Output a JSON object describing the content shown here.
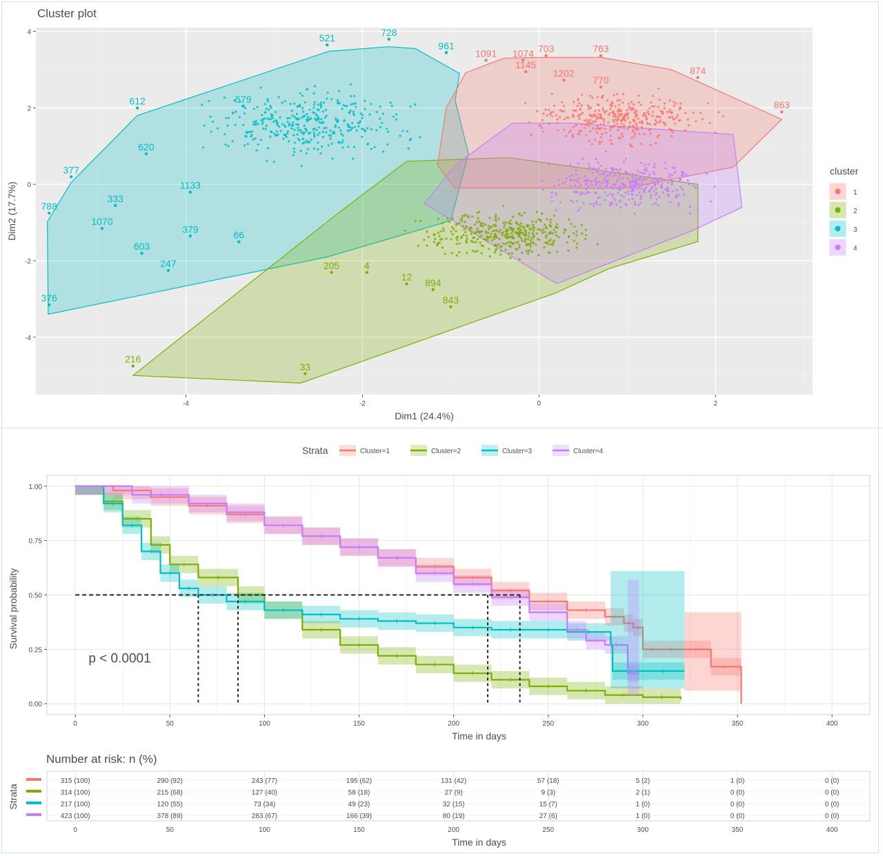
{
  "colors": {
    "c1": "#F8766D",
    "c2": "#7CAE00",
    "c3": "#00BFC4",
    "c4": "#C77CFF",
    "panel_bg": "#EBEBEB",
    "km_grid": "#E6E6E6",
    "text": "#4D4D4D"
  },
  "chart_data": [
    {
      "type": "scatter",
      "title": "Cluster plot",
      "xlabel": "Dim1 (24.4%)",
      "ylabel": "Dim2 (17.7%)",
      "xlim": [
        -5.7,
        3.1
      ],
      "ylim": [
        -5.5,
        4.1
      ],
      "x_ticks": [
        -4,
        -2,
        0,
        2
      ],
      "y_ticks": [
        4,
        2,
        0,
        -2,
        -4
      ],
      "legend": {
        "title": "cluster",
        "position": "right",
        "entries": [
          "1",
          "2",
          "3",
          "4"
        ]
      },
      "hulls": [
        {
          "name": "1",
          "points": [
            [
              -0.83,
              2.92
            ],
            [
              -0.4,
              3.3
            ],
            [
              0.08,
              3.32
            ],
            [
              0.7,
              3.32
            ],
            [
              1.5,
              3.0
            ],
            [
              2.75,
              1.7
            ],
            [
              2.2,
              0.45
            ],
            [
              1.0,
              -0.1
            ],
            [
              -0.95,
              -0.1
            ],
            [
              -1.15,
              0.5
            ],
            [
              -1.05,
              2.0
            ]
          ]
        },
        {
          "name": "2",
          "points": [
            [
              -4.6,
              -5.0
            ],
            [
              -2.7,
              -5.2
            ],
            [
              0.18,
              -2.85
            ],
            [
              0.8,
              -2.2
            ],
            [
              1.8,
              -1.5
            ],
            [
              1.8,
              0.0
            ],
            [
              -0.35,
              0.7
            ],
            [
              -1.5,
              0.6
            ],
            [
              -2.3,
              -0.8
            ]
          ]
        },
        {
          "name": "3",
          "points": [
            [
              -5.57,
              -0.98
            ],
            [
              -5.56,
              -3.4
            ],
            [
              -2.4,
              -1.9
            ],
            [
              -1.0,
              -0.95
            ],
            [
              -0.8,
              0.8
            ],
            [
              -0.95,
              2.2
            ],
            [
              -0.9,
              2.9
            ],
            [
              -1.4,
              3.55
            ],
            [
              -1.7,
              3.6
            ],
            [
              -2.38,
              3.48
            ],
            [
              -4.55,
              1.8
            ],
            [
              -5.3,
              0.05
            ]
          ]
        },
        {
          "name": "4",
          "points": [
            [
              -1.3,
              -0.5
            ],
            [
              -0.95,
              0.5
            ],
            [
              -0.3,
              1.6
            ],
            [
              0.4,
              1.6
            ],
            [
              2.2,
              1.3
            ],
            [
              2.3,
              -0.6
            ],
            [
              1.75,
              -1.2
            ],
            [
              0.2,
              -2.6
            ]
          ]
        }
      ],
      "labels": [
        {
          "cluster": "1",
          "text": "1091",
          "x": -0.6,
          "y": 3.3
        },
        {
          "cluster": "1",
          "text": "1074",
          "x": -0.18,
          "y": 3.3
        },
        {
          "cluster": "1",
          "text": "703",
          "x": 0.08,
          "y": 3.42
        },
        {
          "cluster": "1",
          "text": "763",
          "x": 0.7,
          "y": 3.42
        },
        {
          "cluster": "1",
          "text": "1202",
          "x": 0.28,
          "y": 2.78
        },
        {
          "cluster": "1",
          "text": "770",
          "x": 0.7,
          "y": 2.6
        },
        {
          "cluster": "1",
          "text": "863",
          "x": 2.75,
          "y": 1.95
        },
        {
          "cluster": "1",
          "text": "874",
          "x": 1.8,
          "y": 2.85
        },
        {
          "cluster": "1",
          "text": "1145",
          "x": -0.15,
          "y": 3.0
        },
        {
          "cluster": "2",
          "text": "216",
          "x": -4.6,
          "y": -4.7
        },
        {
          "cluster": "2",
          "text": "33",
          "x": -2.65,
          "y": -4.9
        },
        {
          "cluster": "2",
          "text": "843",
          "x": -1.0,
          "y": -3.15
        },
        {
          "cluster": "2",
          "text": "894",
          "x": -1.2,
          "y": -2.7
        },
        {
          "cluster": "2",
          "text": "205",
          "x": -2.35,
          "y": -2.25
        },
        {
          "cluster": "2",
          "text": "12",
          "x": -1.5,
          "y": -2.55
        },
        {
          "cluster": "2",
          "text": "4",
          "x": -1.95,
          "y": -2.25
        },
        {
          "cluster": "3",
          "text": "728",
          "x": -1.7,
          "y": 3.85
        },
        {
          "cluster": "3",
          "text": "521",
          "x": -2.4,
          "y": 3.7
        },
        {
          "cluster": "3",
          "text": "961",
          "x": -1.05,
          "y": 3.5
        },
        {
          "cluster": "3",
          "text": "612",
          "x": -4.55,
          "y": 2.05
        },
        {
          "cluster": "3",
          "text": "377",
          "x": -5.3,
          "y": 0.25
        },
        {
          "cluster": "3",
          "text": "788",
          "x": -5.55,
          "y": -0.7
        },
        {
          "cluster": "3",
          "text": "376",
          "x": -5.55,
          "y": -3.1
        },
        {
          "cluster": "3",
          "text": "1070",
          "x": -4.95,
          "y": -1.1
        },
        {
          "cluster": "3",
          "text": "603",
          "x": -4.5,
          "y": -1.75
        },
        {
          "cluster": "3",
          "text": "247",
          "x": -4.2,
          "y": -2.2
        },
        {
          "cluster": "3",
          "text": "379",
          "x": -3.95,
          "y": -1.3
        },
        {
          "cluster": "3",
          "text": "66",
          "x": -3.4,
          "y": -1.45
        },
        {
          "cluster": "3",
          "text": "1133",
          "x": -3.95,
          "y": -0.15
        },
        {
          "cluster": "3",
          "text": "333",
          "x": -4.8,
          "y": -0.5
        },
        {
          "cluster": "3",
          "text": "620",
          "x": -4.45,
          "y": 0.85
        },
        {
          "cluster": "3",
          "text": "579",
          "x": -3.35,
          "y": 2.1
        }
      ]
    },
    {
      "type": "line",
      "title": "",
      "xlabel": "Time in days",
      "ylabel": "Survival probability",
      "xlim": [
        -15,
        420
      ],
      "ylim": [
        -0.05,
        1.05
      ],
      "x_ticks": [
        0,
        50,
        100,
        150,
        200,
        250,
        300,
        350,
        400
      ],
      "y_ticks": [
        "1.00",
        "0.75",
        "0.50",
        "0.25",
        "0.00"
      ],
      "legend": {
        "title": "Strata",
        "position": "top"
      },
      "annotation": "p < 0.0001",
      "median_line": 0.5,
      "medians": [
        65,
        86,
        218,
        235
      ],
      "series": [
        {
          "name": "Cluster=1",
          "x": [
            0,
            20,
            40,
            60,
            80,
            100,
            120,
            140,
            160,
            180,
            200,
            220,
            240,
            260,
            280,
            290,
            295,
            300,
            310,
            320,
            336,
            350,
            352
          ],
          "values": [
            1.0,
            0.98,
            0.95,
            0.91,
            0.87,
            0.82,
            0.77,
            0.72,
            0.67,
            0.63,
            0.58,
            0.52,
            0.47,
            0.43,
            0.4,
            0.37,
            0.35,
            0.25,
            0.25,
            0.25,
            0.17,
            0.17,
            0.0
          ]
        },
        {
          "name": "Cluster=2",
          "x": [
            0,
            15,
            25,
            40,
            50,
            65,
            86,
            100,
            120,
            140,
            160,
            180,
            200,
            220,
            240,
            260,
            280,
            300,
            320
          ],
          "values": [
            1.0,
            0.93,
            0.85,
            0.73,
            0.64,
            0.58,
            0.5,
            0.43,
            0.34,
            0.27,
            0.22,
            0.18,
            0.14,
            0.11,
            0.08,
            0.06,
            0.04,
            0.03,
            0.02
          ]
        },
        {
          "name": "Cluster=3",
          "x": [
            0,
            15,
            25,
            35,
            45,
            55,
            65,
            80,
            100,
            120,
            140,
            160,
            180,
            200,
            220,
            240,
            260,
            283,
            284,
            300,
            322
          ],
          "values": [
            1.0,
            0.92,
            0.82,
            0.7,
            0.6,
            0.53,
            0.5,
            0.47,
            0.43,
            0.41,
            0.39,
            0.38,
            0.37,
            0.35,
            0.34,
            0.34,
            0.33,
            0.27,
            0.15,
            0.15,
            0.15
          ]
        },
        {
          "name": "Cluster=4",
          "x": [
            0,
            30,
            60,
            80,
            100,
            120,
            140,
            160,
            180,
            200,
            220,
            240,
            260,
            270,
            280,
            292,
            298
          ],
          "values": [
            1.0,
            0.96,
            0.92,
            0.88,
            0.82,
            0.77,
            0.72,
            0.67,
            0.6,
            0.55,
            0.49,
            0.42,
            0.34,
            0.29,
            0.27,
            0.14,
            0.14
          ]
        }
      ]
    },
    {
      "type": "table",
      "title": "Number at risk: n (%)",
      "xlabel": "Time in days",
      "ylabel": "Strata",
      "x_ticks": [
        0,
        50,
        100,
        150,
        200,
        250,
        300,
        350,
        400
      ],
      "rows": [
        {
          "strata": "1",
          "cells": [
            "315 (100)",
            "290 (92)",
            "243 (77)",
            "195 (62)",
            "131 (42)",
            "57 (18)",
            "5 (2)",
            "1 (0)",
            "0 (0)"
          ]
        },
        {
          "strata": "2",
          "cells": [
            "314 (100)",
            "215 (68)",
            "127 (40)",
            "58 (18)",
            "27 (9)",
            "9 (3)",
            "2 (1)",
            "0 (0)",
            "0 (0)"
          ]
        },
        {
          "strata": "3",
          "cells": [
            "217 (100)",
            "120 (55)",
            "73 (34)",
            "49 (23)",
            "32 (15)",
            "15 (7)",
            "1 (0)",
            "0 (0)",
            "0 (0)"
          ]
        },
        {
          "strata": "4",
          "cells": [
            "423 (100)",
            "378 (89)",
            "283 (67)",
            "166 (39)",
            "80 (19)",
            "27 (6)",
            "1 (0)",
            "0 (0)",
            "0 (0)"
          ]
        }
      ]
    }
  ]
}
